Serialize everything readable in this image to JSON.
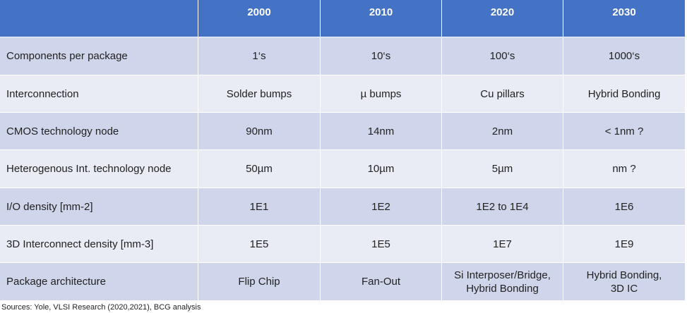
{
  "table": {
    "header": [
      "2000",
      "2010",
      "2020",
      "2030"
    ],
    "rows": [
      [
        "Components per package",
        "1‘s",
        "10‘s",
        "100‘s",
        "1000‘s"
      ],
      [
        "Interconnection",
        "Solder bumps",
        "µ bumps",
        "Cu pillars",
        "Hybrid Bonding"
      ],
      [
        "CMOS technology node",
        "90nm",
        "14nm",
        "2nm",
        "< 1nm ?"
      ],
      [
        "Heterogenous Int. technology node",
        "50µm",
        "10µm",
        "5µm",
        "nm ?"
      ],
      [
        "I/O density [mm-2]",
        "1E1",
        "1E2",
        "1E2 to 1E4",
        "1E6"
      ],
      [
        "3D Interconnect density [mm-3]",
        "1E5",
        "1E5",
        "1E7",
        "1E9"
      ],
      [
        "Package architecture",
        "Flip Chip",
        "Fan-Out",
        "Si Interposer/Bridge,\nHybrid Bonding",
        "Hybrid Bonding,\n3D IC"
      ]
    ]
  },
  "footnote": "Sources: Yole, VLSI Research (2020,2021), BCG analysis"
}
